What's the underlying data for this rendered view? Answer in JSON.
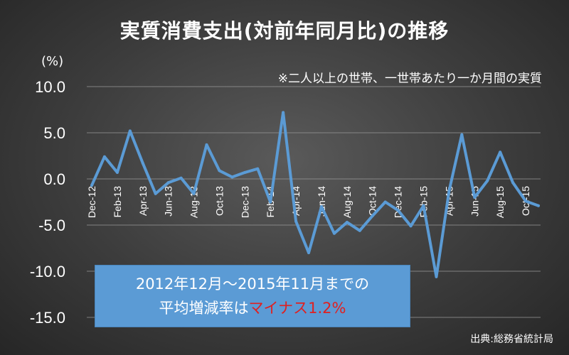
{
  "title": "実質消費支出(対前年同月比)の推移",
  "unit": "(%)",
  "note": "※二人以上の世帯、一世帯あたり一か月間の実質",
  "callout": {
    "line1": "2012年12月〜2015年11月までの",
    "line2_prefix": "平均増減率は",
    "line2_highlight": "マイナス1.2%"
  },
  "source": "出典:総務省統計局",
  "colors": {
    "line": "#5b9bd5",
    "callout_bg": "#5b9bd5",
    "highlight": "#e02020"
  },
  "chart_data": {
    "type": "line",
    "title": "実質消費支出(対前年同月比)の推移",
    "ylabel": "(%)",
    "ylim": [
      -15,
      10
    ],
    "yticks": [
      10,
      5,
      0,
      -5,
      -10,
      -15
    ],
    "ytick_labels": [
      "10.0",
      "5.0",
      "0.0",
      "-5.0",
      "-10.0",
      "-15.0"
    ],
    "grid": true,
    "x": [
      "Dec-12",
      "Jan-13",
      "Feb-13",
      "Mar-13",
      "Apr-13",
      "May-13",
      "Jun-13",
      "Jul-13",
      "Aug-13",
      "Sep-13",
      "Oct-13",
      "Nov-13",
      "Dec-13",
      "Jan-14",
      "Feb-14",
      "Mar-14",
      "Apr-14",
      "May-14",
      "Jun-14",
      "Jul-14",
      "Aug-14",
      "Sep-14",
      "Oct-14",
      "Nov-14",
      "Dec-14",
      "Jan-15",
      "Feb-15",
      "Mar-15",
      "Apr-15",
      "May-15",
      "Jun-15",
      "Jul-15",
      "Aug-15",
      "Sep-15",
      "Oct-15",
      "Nov-15"
    ],
    "xtick_labels": [
      "Dec-12",
      "Feb-13",
      "Apr-13",
      "Jun-13",
      "Aug-13",
      "Oct-13",
      "Dec-13",
      "Feb-14",
      "Apr-14",
      "Jun-14",
      "Aug-14",
      "Oct-14",
      "Dec-14",
      "Feb-15",
      "Apr-15",
      "Jun-15",
      "Aug-15",
      "Oct-15"
    ],
    "series": [
      {
        "values": [
          -0.7,
          2.4,
          0.7,
          5.2,
          1.7,
          -1.6,
          -0.4,
          0.1,
          -1.6,
          3.7,
          0.9,
          0.2,
          0.7,
          1.1,
          -2.5,
          7.2,
          -4.6,
          -8.0,
          -3.0,
          -5.9,
          -4.7,
          -5.6,
          -4.0,
          -2.5,
          -3.4,
          -5.1,
          -2.9,
          -10.6,
          -1.3,
          4.8,
          -2.0,
          -0.2,
          2.9,
          -0.4,
          -2.4,
          -2.9
        ]
      }
    ]
  }
}
